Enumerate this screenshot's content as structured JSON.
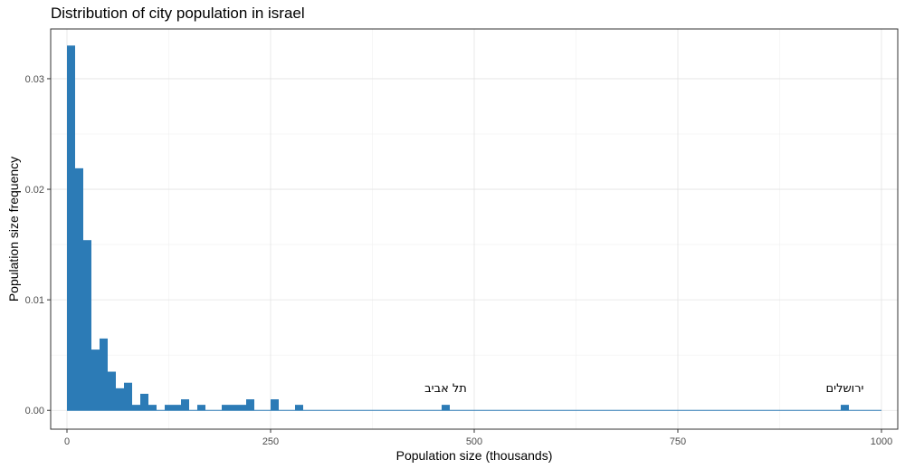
{
  "chart_data": {
    "type": "bar",
    "title": "Distribution of city population in israel",
    "xlabel": "Population size (thousands)",
    "ylabel": "Population size frequency",
    "xlim": [
      -20,
      1020
    ],
    "ylim": [
      -0.0017,
      0.0345
    ],
    "x_ticks": [
      0,
      250,
      500,
      750,
      1000
    ],
    "x_tick_labels": [
      "0",
      "250",
      "500",
      "750",
      "1000"
    ],
    "y_ticks": [
      0,
      0.01,
      0.02,
      0.03
    ],
    "y_tick_labels": [
      "0.00",
      "0.01",
      "0.02",
      "0.03"
    ],
    "grid": true,
    "bin_width": 10,
    "bar_color": "#2C7BB6",
    "bins": [
      {
        "x0": 0,
        "value": 0.033
      },
      {
        "x0": 10,
        "value": 0.0219
      },
      {
        "x0": 20,
        "value": 0.0154
      },
      {
        "x0": 30,
        "value": 0.0055
      },
      {
        "x0": 40,
        "value": 0.0065
      },
      {
        "x0": 50,
        "value": 0.0035
      },
      {
        "x0": 60,
        "value": 0.002
      },
      {
        "x0": 70,
        "value": 0.0025
      },
      {
        "x0": 80,
        "value": 0.0005
      },
      {
        "x0": 90,
        "value": 0.0015
      },
      {
        "x0": 100,
        "value": 0.0005
      },
      {
        "x0": 120,
        "value": 0.0005
      },
      {
        "x0": 130,
        "value": 0.0005
      },
      {
        "x0": 140,
        "value": 0.001
      },
      {
        "x0": 160,
        "value": 0.0005
      },
      {
        "x0": 190,
        "value": 0.0005
      },
      {
        "x0": 200,
        "value": 0.0005
      },
      {
        "x0": 210,
        "value": 0.0005
      },
      {
        "x0": 220,
        "value": 0.001
      },
      {
        "x0": 250,
        "value": 0.001
      },
      {
        "x0": 280,
        "value": 0.0005
      },
      {
        "x0": 460,
        "value": 0.0005
      },
      {
        "x0": 950,
        "value": 0.0005
      }
    ],
    "baseline_range": [
      0,
      1000
    ],
    "annotations": [
      {
        "text": "תל אביב",
        "x": 465,
        "y": 0.0015
      },
      {
        "text": "ירושלים",
        "x": 955,
        "y": 0.0015
      }
    ]
  }
}
